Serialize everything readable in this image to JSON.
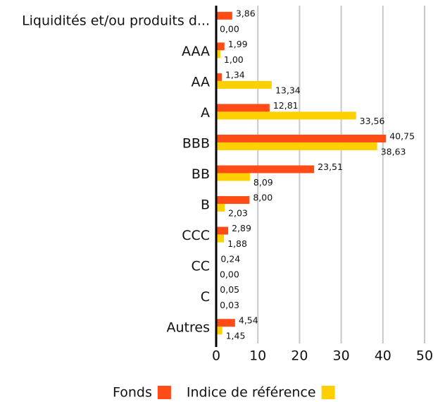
{
  "chart_data": {
    "type": "hbar",
    "categories": [
      "Liquidités et/ou produits d...",
      "AAA",
      "AA",
      "A",
      "BBB",
      "BB",
      "B",
      "CCC",
      "CC",
      "C",
      "Autres"
    ],
    "series": [
      {
        "name": "Fonds",
        "color": "#ff4c17",
        "values": [
          3.86,
          1.99,
          1.34,
          12.81,
          40.75,
          23.51,
          8.0,
          2.89,
          0.24,
          0.05,
          4.54
        ],
        "value_labels": [
          "3,86",
          "1,99",
          "1,34",
          "12,81",
          "40,75",
          "23,51",
          "8,00",
          "2,89",
          "0,24",
          "0,05",
          "4,54"
        ]
      },
      {
        "name": "Indice de référence",
        "color": "#ffd000",
        "values": [
          0.0,
          1.0,
          13.34,
          33.56,
          38.63,
          8.09,
          2.03,
          1.88,
          0.0,
          0.03,
          1.45
        ],
        "value_labels": [
          "0,00",
          "1,00",
          "13,34",
          "33,56",
          "38,63",
          "8,09",
          "2,03",
          "1,88",
          "0,00",
          "0,03",
          "1,45"
        ]
      }
    ],
    "xlim": [
      0,
      50
    ],
    "xticks": [
      0,
      10,
      20,
      30,
      40,
      50
    ],
    "grid": true,
    "legend": "bottom"
  }
}
